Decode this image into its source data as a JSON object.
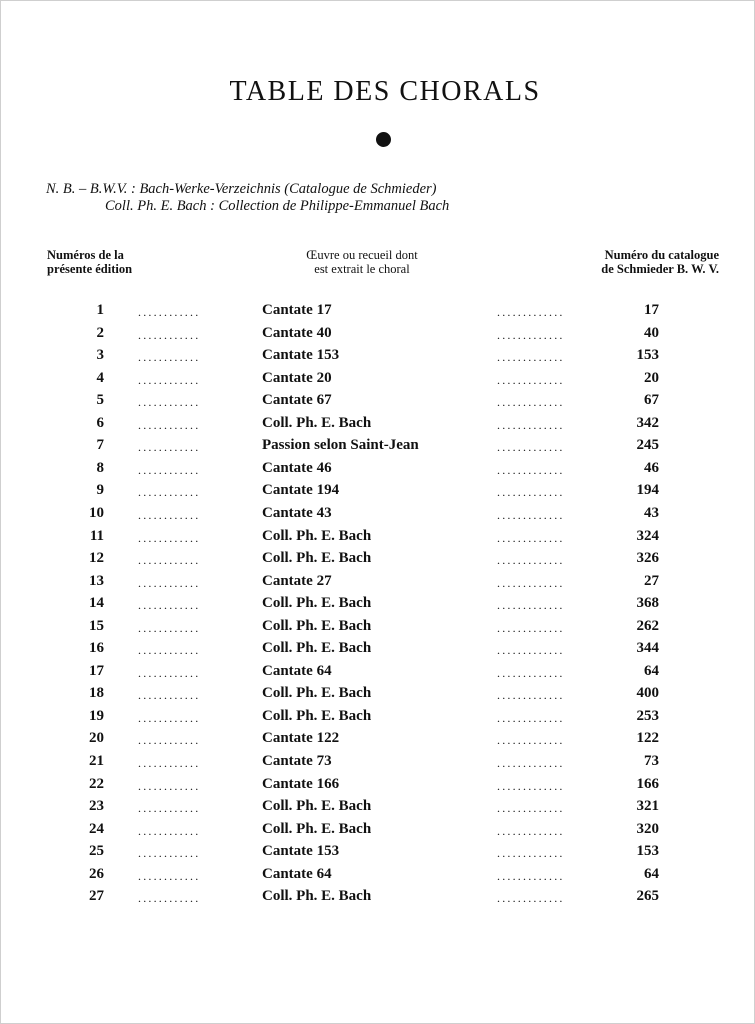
{
  "title": "TABLE DES CHORALS",
  "notes": {
    "line1": "N. B. – B.W.V. : Bach-Werke-Verzeichnis (Catalogue de Schmieder)",
    "line2": "Coll. Ph. E. Bach : Collection de Philippe-Emmanuel Bach"
  },
  "headers": {
    "number": [
      "Numéros de la",
      "présente édition"
    ],
    "work": [
      "Œuvre ou recueil dont",
      "est extrait le choral"
    ],
    "bwv": [
      "Numéro du catalogue",
      "de Schmieder B. W. V."
    ]
  },
  "leader": "............",
  "leader2": ".............",
  "rows": [
    {
      "n": "1",
      "work": "Cantate 17",
      "bwv": "17"
    },
    {
      "n": "2",
      "work": "Cantate 40",
      "bwv": "40"
    },
    {
      "n": "3",
      "work": "Cantate 153",
      "bwv": "153"
    },
    {
      "n": "4",
      "work": "Cantate 20",
      "bwv": "20"
    },
    {
      "n": "5",
      "work": "Cantate 67",
      "bwv": "67"
    },
    {
      "n": "6",
      "work": "Coll. Ph. E. Bach",
      "bwv": "342"
    },
    {
      "n": "7",
      "work": "Passion selon Saint-Jean",
      "bwv": "245"
    },
    {
      "n": "8",
      "work": "Cantate 46",
      "bwv": "46"
    },
    {
      "n": "9",
      "work": "Cantate 194",
      "bwv": "194"
    },
    {
      "n": "10",
      "work": "Cantate 43",
      "bwv": "43"
    },
    {
      "n": "11",
      "work": "Coll. Ph. E. Bach",
      "bwv": "324"
    },
    {
      "n": "12",
      "work": "Coll. Ph. E. Bach",
      "bwv": "326"
    },
    {
      "n": "13",
      "work": "Cantate 27",
      "bwv": "27"
    },
    {
      "n": "14",
      "work": "Coll. Ph. E. Bach",
      "bwv": "368"
    },
    {
      "n": "15",
      "work": "Coll. Ph. E. Bach",
      "bwv": "262"
    },
    {
      "n": "16",
      "work": "Coll. Ph. E. Bach",
      "bwv": "344"
    },
    {
      "n": "17",
      "work": "Cantate 64",
      "bwv": "64"
    },
    {
      "n": "18",
      "work": "Coll. Ph. E. Bach",
      "bwv": "400"
    },
    {
      "n": "19",
      "work": "Coll. Ph. E. Bach",
      "bwv": "253"
    },
    {
      "n": "20",
      "work": "Cantate 122",
      "bwv": "122"
    },
    {
      "n": "21",
      "work": "Cantate 73",
      "bwv": "73"
    },
    {
      "n": "22",
      "work": "Cantate 166",
      "bwv": "166"
    },
    {
      "n": "23",
      "work": "Coll. Ph. E. Bach",
      "bwv": "321"
    },
    {
      "n": "24",
      "work": "Coll. Ph. E. Bach",
      "bwv": "320"
    },
    {
      "n": "25",
      "work": "Cantate 153",
      "bwv": "153"
    },
    {
      "n": "26",
      "work": "Cantate 64",
      "bwv": "64"
    },
    {
      "n": "27",
      "work": "Coll. Ph. E. Bach",
      "bwv": "265"
    }
  ]
}
